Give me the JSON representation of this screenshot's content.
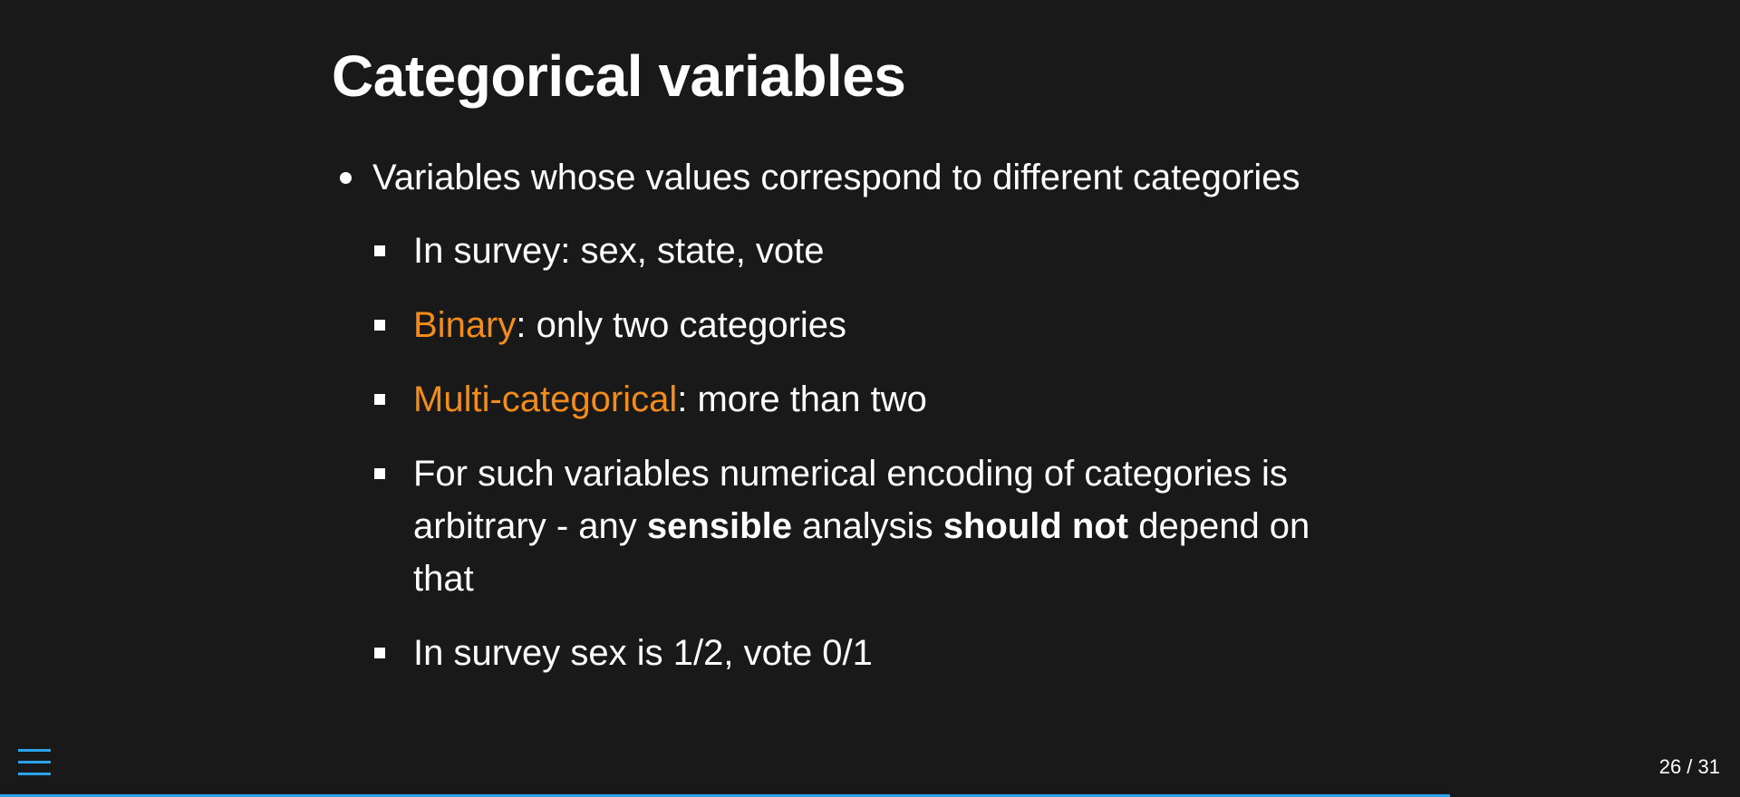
{
  "slide": {
    "title": "Categorical variables",
    "bullet": {
      "text": "Variables whose values correspond to different categories",
      "sub_items": [
        {
          "text": "In survey: sex, state, vote"
        },
        {
          "highlight": "Binary",
          "rest": ": only two categories"
        },
        {
          "highlight": "Multi-categorical",
          "rest": ": more than two"
        },
        {
          "part1": "For such variables numerical encoding of categories is arbitrary - any ",
          "bold1": "sensible",
          "part2": " analysis ",
          "bold2": "should not",
          "part3": " depend on that"
        },
        {
          "text": "In survey sex is 1/2, vote 0/1"
        }
      ]
    }
  },
  "navigation": {
    "menu_icon": "hamburger-menu-icon",
    "slide_counter": "26 / 31",
    "progress_fraction": 0.8333
  },
  "colors": {
    "background": "#191919",
    "text": "#ffffff",
    "highlight": "#f28c1a",
    "accent": "#2aa3ef"
  }
}
